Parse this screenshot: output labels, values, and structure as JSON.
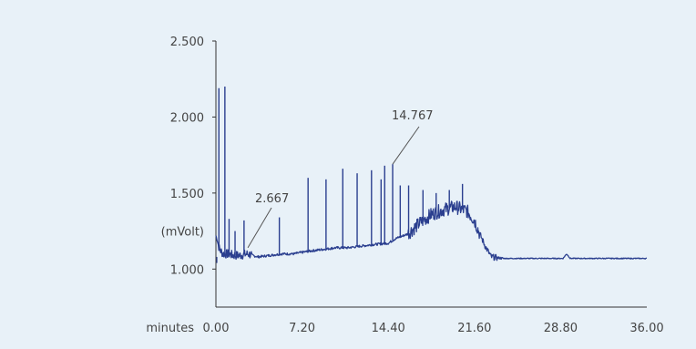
{
  "chart_data": {
    "type": "line",
    "xlabel": "minutes",
    "ylabel": "(mVolt)",
    "xlim": [
      0,
      36
    ],
    "ylim": [
      0.75,
      2.5
    ],
    "x_ticks": [
      "0.00",
      "7.20",
      "14.40",
      "21.60",
      "28.80",
      "36.00"
    ],
    "y_ticks": [
      "2.500",
      "2.000",
      "1.500",
      "1.000"
    ],
    "annotations": [
      {
        "label": "2.667",
        "x": 2.667,
        "y": 1.14
      },
      {
        "label": "14.767",
        "x": 14.767,
        "y": 1.69
      }
    ],
    "series": [
      {
        "color": "#2b3f8f",
        "x": [
          0.0,
          0.3,
          0.6,
          1.0,
          1.5,
          2.0,
          2.667,
          3.5,
          4.5,
          5.5,
          6.5,
          7.2,
          8.0,
          9.0,
          10.0,
          11.0,
          12.0,
          13.0,
          14.4,
          15.0,
          16.0,
          17.0,
          18.0,
          19.0,
          20.0,
          21.0,
          21.6,
          22.0,
          22.5,
          23.0,
          24.0,
          25.0,
          26.0,
          28.0,
          29.0,
          29.3,
          29.6,
          30.0,
          32.0,
          34.0,
          36.0
        ],
        "y": [
          1.22,
          1.13,
          1.1,
          1.1,
          1.09,
          1.09,
          1.1,
          1.08,
          1.09,
          1.1,
          1.1,
          1.11,
          1.12,
          1.13,
          1.14,
          1.14,
          1.15,
          1.16,
          1.17,
          1.2,
          1.23,
          1.3,
          1.36,
          1.39,
          1.41,
          1.38,
          1.32,
          1.24,
          1.15,
          1.08,
          1.07,
          1.07,
          1.07,
          1.07,
          1.07,
          1.1,
          1.07,
          1.07,
          1.07,
          1.07,
          1.07
        ]
      }
    ],
    "peaks": [
      {
        "x": 0.25,
        "y": 2.19
      },
      {
        "x": 0.75,
        "y": 2.2
      },
      {
        "x": 1.1,
        "y": 1.33
      },
      {
        "x": 1.6,
        "y": 1.25
      },
      {
        "x": 2.35,
        "y": 1.32
      },
      {
        "x": 5.3,
        "y": 1.34
      },
      {
        "x": 7.7,
        "y": 1.6
      },
      {
        "x": 9.2,
        "y": 1.59
      },
      {
        "x": 10.6,
        "y": 1.66
      },
      {
        "x": 11.8,
        "y": 1.63
      },
      {
        "x": 13.0,
        "y": 1.65
      },
      {
        "x": 13.8,
        "y": 1.59
      },
      {
        "x": 14.1,
        "y": 1.68
      },
      {
        "x": 14.767,
        "y": 1.69
      },
      {
        "x": 15.4,
        "y": 1.55
      },
      {
        "x": 16.1,
        "y": 1.55
      },
      {
        "x": 17.3,
        "y": 1.52
      },
      {
        "x": 18.4,
        "y": 1.5
      },
      {
        "x": 19.5,
        "y": 1.52
      },
      {
        "x": 20.6,
        "y": 1.56
      }
    ]
  }
}
